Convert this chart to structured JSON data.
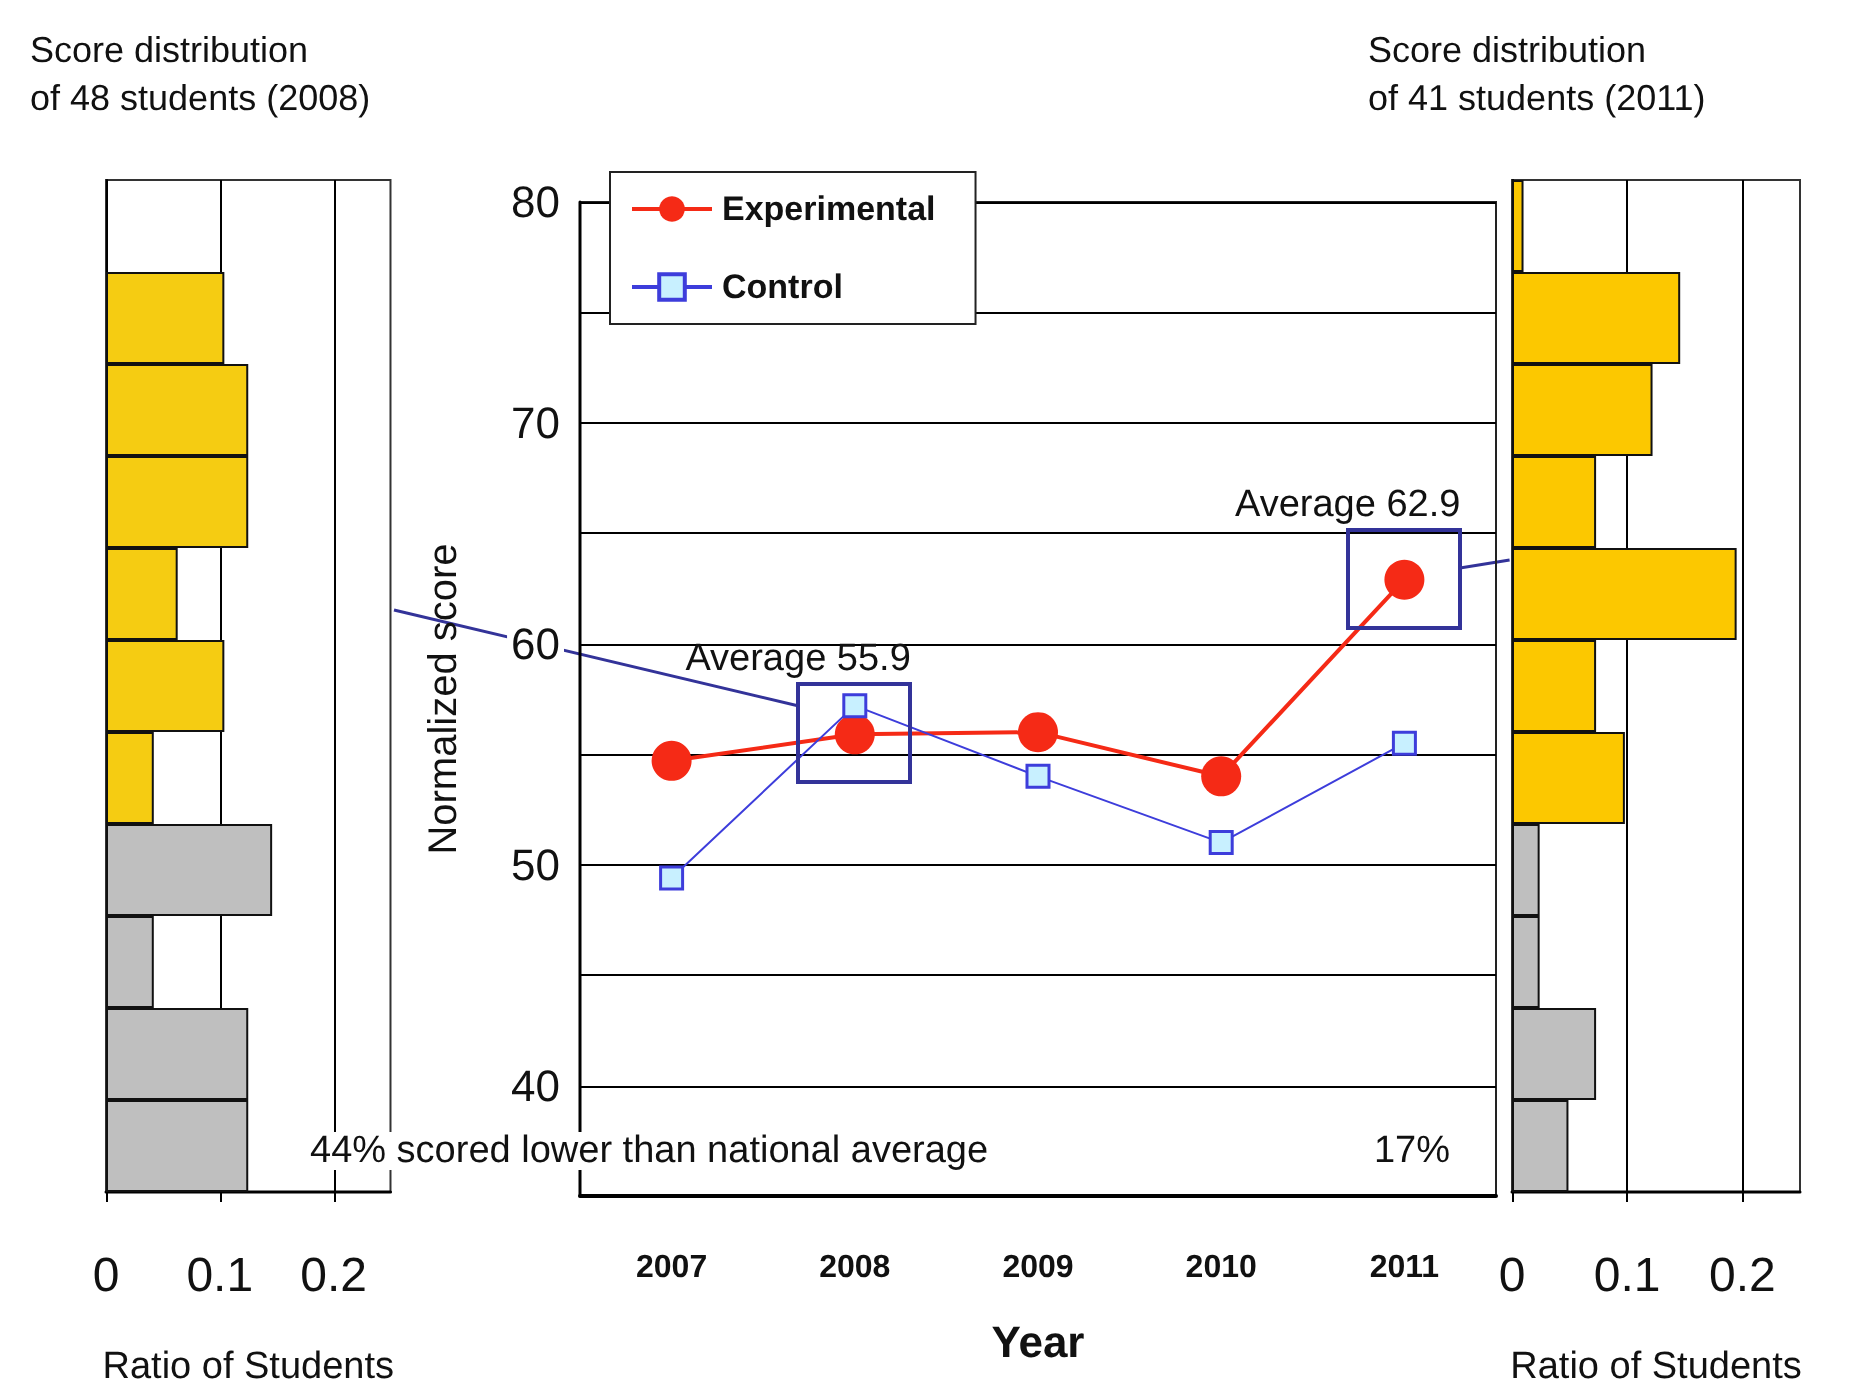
{
  "chart_data": [
    {
      "type": "bar",
      "orientation": "horizontal",
      "title": "Score distribution\nof 48 students (2008)",
      "xlabel": "Ratio of Students",
      "categories": [
        null,
        null,
        null,
        null,
        null,
        null,
        null,
        null,
        null,
        null,
        null
      ],
      "values": [
        0,
        0.104,
        0.125,
        0.125,
        0.063,
        0.104,
        0.042,
        0.146,
        0.042,
        0.125,
        0.125
      ],
      "colors": [
        "#f5cc12",
        "#f5cc12",
        "#f5cc12",
        "#f5cc12",
        "#f5cc12",
        "#f5cc12",
        "#f5cc12",
        "#bfbfbf",
        "#bfbfbf",
        "#bfbfbf",
        "#bfbfbf"
      ],
      "xlim": [
        0,
        0.25
      ],
      "xticks": [
        0,
        0.1,
        0.2
      ],
      "grid": "x"
    },
    {
      "type": "line",
      "xlabel": "Year",
      "ylabel": "Normalized score",
      "categories": [
        "2007",
        "2008",
        "2009",
        "2010",
        "2011"
      ],
      "series": [
        {
          "name": "Experimental",
          "color": "#f52a16",
          "marker": "circle",
          "values": [
            54.7,
            55.9,
            56.0,
            54.0,
            62.9
          ]
        },
        {
          "name": "Control",
          "color": "#3d3ddb",
          "marker": "square",
          "values": [
            49.4,
            57.2,
            54.0,
            51.0,
            55.5
          ]
        }
      ],
      "ylim": [
        35,
        80
      ],
      "yticks": [
        40,
        {
          "value": 45,
          "label": null
        },
        50,
        {
          "value": 55,
          "label": null
        },
        60,
        {
          "value": 65,
          "label": null
        },
        70,
        {
          "value": 75,
          "label": null
        },
        80
      ],
      "grid": "y",
      "legend": "top left",
      "annotations": [
        {
          "text": "Average 55.9",
          "x": "2008",
          "y": 55.9
        },
        {
          "text": "Average 62.9",
          "x": "2011",
          "y": 62.9
        },
        "44% scored lower than national average",
        "17%"
      ]
    },
    {
      "type": "bar",
      "orientation": "horizontal",
      "title": "Score distribution\nof 41 students (2011)",
      "xlabel": "Ratio of Students",
      "categories": [
        null,
        null,
        null,
        null,
        null,
        null,
        null,
        null,
        null,
        null,
        null
      ],
      "values": [
        0.01,
        0.146,
        0.122,
        0.073,
        0.195,
        0.073,
        0.098,
        0.024,
        0.024,
        0.073,
        0.049
      ],
      "colors": [
        "#fcc800",
        "#fcc800",
        "#fcc800",
        "#fcc800",
        "#fcc800",
        "#fcc800",
        "#fcc800",
        "#bfbfbf",
        "#bfbfbf",
        "#bfbfbf",
        "#bfbfbf"
      ],
      "xlim": [
        0,
        0.25
      ],
      "xticks": [
        0,
        0.1,
        0.2
      ],
      "grid": "x"
    }
  ]
}
